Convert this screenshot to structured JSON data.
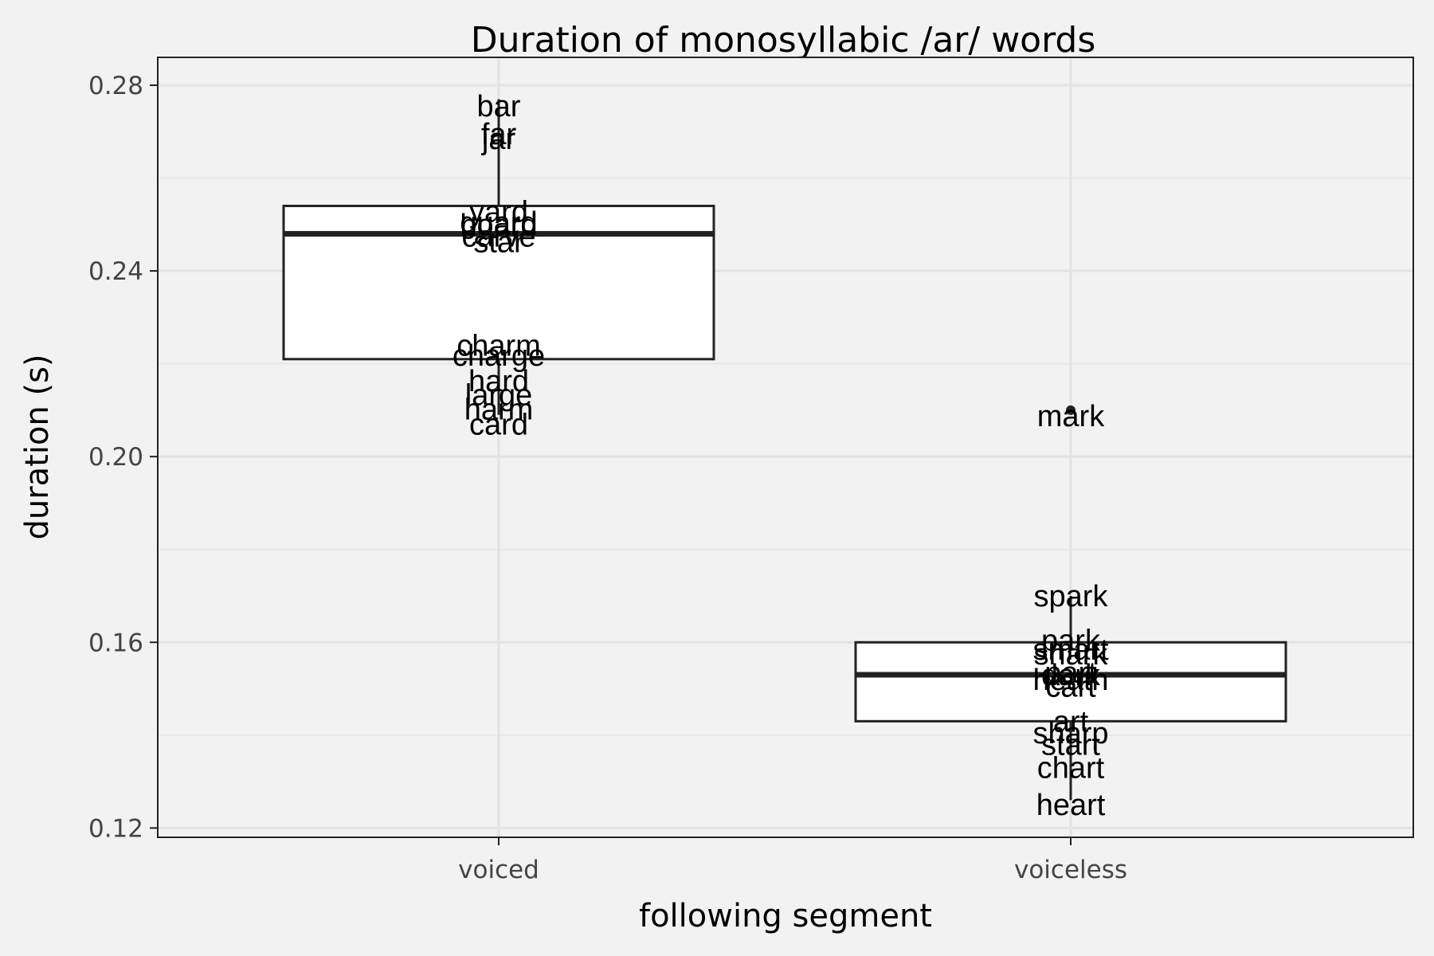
{
  "chart_data": {
    "type": "boxplot",
    "title": "Duration of monosyllabic /ar/ words",
    "xlabel": "following segment",
    "ylabel": "duration (s)",
    "categories": [
      "voiced",
      "voiceless"
    ],
    "ylim": [
      0.118,
      0.286
    ],
    "yticks": [
      "0.12",
      "0.16",
      "0.20",
      "0.24",
      "0.28"
    ],
    "ytick_values": [
      0.12,
      0.16,
      0.2,
      0.24,
      0.28
    ],
    "grid": true,
    "boxes": [
      {
        "category": "voiced",
        "lower_whisker": 0.209,
        "q1": 0.221,
        "median": 0.248,
        "q3": 0.254,
        "upper_whisker": 0.277,
        "outliers": []
      },
      {
        "category": "voiceless",
        "lower_whisker": 0.126,
        "q1": 0.143,
        "median": 0.153,
        "q3": 0.16,
        "upper_whisker": 0.17,
        "outliers": [
          0.21
        ]
      }
    ],
    "points": [
      {
        "category": "voiced",
        "label": "bar",
        "y": 0.2755
      },
      {
        "category": "voiced",
        "label": "far",
        "y": 0.2695
      },
      {
        "category": "voiced",
        "label": "jar",
        "y": 0.2685
      },
      {
        "category": "voiced",
        "label": "yard",
        "y": 0.2528
      },
      {
        "category": "voiced",
        "label": "guard",
        "y": 0.2505
      },
      {
        "category": "voiced",
        "label": "board",
        "y": 0.25
      },
      {
        "category": "voiced",
        "label": "carve",
        "y": 0.2475
      },
      {
        "category": "voiced",
        "label": "star",
        "y": 0.2463
      },
      {
        "category": "voiced",
        "label": "charm",
        "y": 0.224
      },
      {
        "category": "voiced",
        "label": "charge",
        "y": 0.2218
      },
      {
        "category": "voiced",
        "label": "hard",
        "y": 0.2163
      },
      {
        "category": "voiced",
        "label": "large",
        "y": 0.2133
      },
      {
        "category": "voiced",
        "label": "harm",
        "y": 0.2102
      },
      {
        "category": "voiced",
        "label": "card",
        "y": 0.207
      },
      {
        "category": "voiceless",
        "label": "mark",
        "y": 0.2088
      },
      {
        "category": "voiceless",
        "label": "spark",
        "y": 0.17
      },
      {
        "category": "voiceless",
        "label": "park",
        "y": 0.1605
      },
      {
        "category": "voiceless",
        "label": "smart",
        "y": 0.1585
      },
      {
        "category": "voiceless",
        "label": "shark",
        "y": 0.1575
      },
      {
        "category": "voiceless",
        "label": "part",
        "y": 0.1535
      },
      {
        "category": "voiceless",
        "label": "dark",
        "y": 0.153
      },
      {
        "category": "voiceless",
        "label": "heath",
        "y": 0.152
      },
      {
        "category": "voiceless",
        "label": "cart",
        "y": 0.1505
      },
      {
        "category": "voiceless",
        "label": "art",
        "y": 0.143
      },
      {
        "category": "voiceless",
        "label": "sharp",
        "y": 0.1405
      },
      {
        "category": "voiceless",
        "label": "start",
        "y": 0.138
      },
      {
        "category": "voiceless",
        "label": "chart",
        "y": 0.133
      },
      {
        "category": "voiceless",
        "label": "heart",
        "y": 0.125
      }
    ]
  }
}
